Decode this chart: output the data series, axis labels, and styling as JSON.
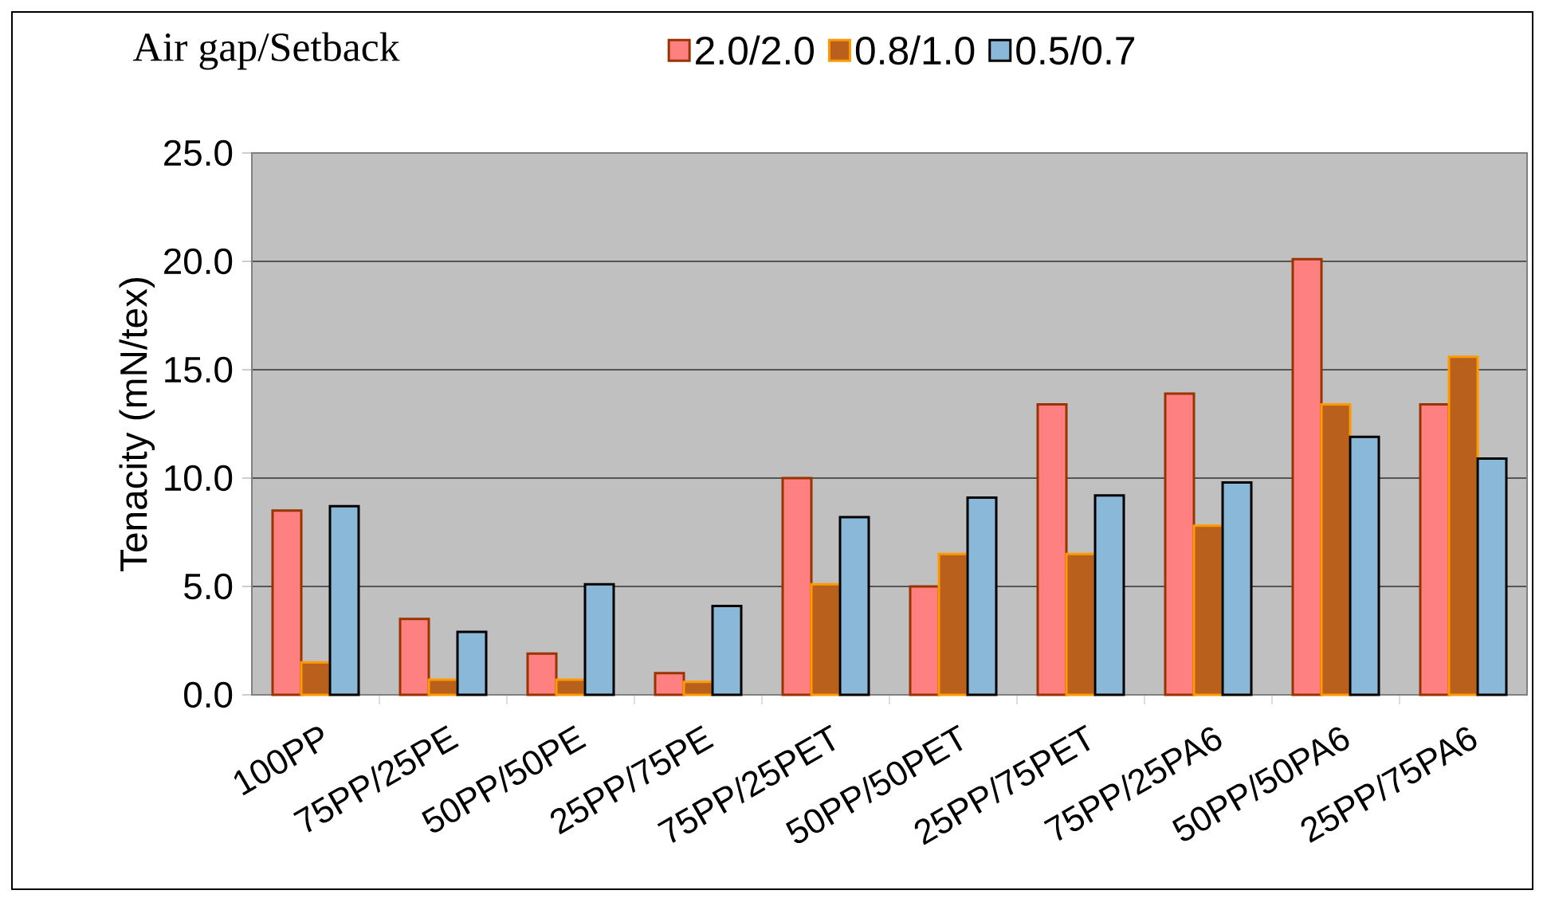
{
  "chart_data": {
    "type": "bar",
    "legend_title": "Air gap/Setback",
    "ylabel": "Tenacity (mN/tex)",
    "categories": [
      "100PP",
      "75PP/25PE",
      "50PP/50PE",
      "25PP/75PE",
      "75PP/25PET",
      "50PP/50PET",
      "25PP/75PET",
      "75PP/25PA6",
      "50PP/50PA6",
      "25PP/75PA6"
    ],
    "series": [
      {
        "name": "2.0/2.0",
        "color": "#ff8080",
        "values": [
          8.5,
          3.5,
          1.9,
          1.0,
          10.0,
          5.0,
          13.4,
          13.9,
          20.1,
          13.4
        ]
      },
      {
        "name": "0.8/1.0",
        "color": "#b8601c",
        "values": [
          1.5,
          0.7,
          0.7,
          0.6,
          5.1,
          6.5,
          6.5,
          7.8,
          13.4,
          15.6
        ]
      },
      {
        "name": "0.5/0.7",
        "color": "#8ab8d8",
        "values": [
          8.7,
          2.9,
          5.1,
          4.1,
          8.2,
          9.1,
          9.2,
          9.8,
          11.9,
          10.9
        ]
      }
    ],
    "ylim": [
      0,
      25
    ],
    "yticks": [
      {
        "value": 0,
        "label": "0.0"
      },
      {
        "value": 5,
        "label": "5.0"
      },
      {
        "value": 10,
        "label": "10.0"
      },
      {
        "value": 15,
        "label": "15.0"
      },
      {
        "value": 20,
        "label": "20.0"
      },
      {
        "value": 25,
        "label": "25.0"
      }
    ],
    "grid": "y",
    "legend": "top"
  }
}
